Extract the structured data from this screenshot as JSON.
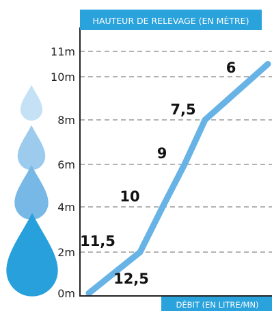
{
  "chart_data": {
    "type": "line",
    "title": "HAUTEUR DE RELEVAGE (EN MÈTRE)",
    "xlabel": "DÉBIT (EN LITRE/MN)",
    "ylabel": "",
    "y_ticks": [
      {
        "value": 0,
        "label": "0m"
      },
      {
        "value": 2,
        "label": "2m"
      },
      {
        "value": 4,
        "label": "4m"
      },
      {
        "value": 6,
        "label": "6m"
      },
      {
        "value": 8,
        "label": "8m"
      },
      {
        "value": 10,
        "label": "10m"
      },
      {
        "value": 11,
        "label": "11m"
      }
    ],
    "ylim": [
      0,
      11
    ],
    "series": [
      {
        "points": [
          {
            "label": "12,5",
            "y": 0
          },
          {
            "label": "11,5",
            "y": 2
          },
          {
            "label": "10",
            "y": 4
          },
          {
            "label": "9",
            "y": 6
          },
          {
            "label": "7,5",
            "y": 8
          },
          {
            "label": "6",
            "y": 10.5
          }
        ]
      }
    ],
    "grid": "dashed horizontal lines at labeled heights",
    "legend": "none",
    "colors": {
      "line": "#67b3e6",
      "header_bg": "#2aa2dc",
      "header_text": "#ffffff",
      "axis": "#222222",
      "grid": "#666666",
      "drops": [
        "#c4e1f5",
        "#9ccbee",
        "#78b8e6",
        "#28a0dc"
      ]
    },
    "decorations": {
      "drop_icons": 4
    }
  }
}
